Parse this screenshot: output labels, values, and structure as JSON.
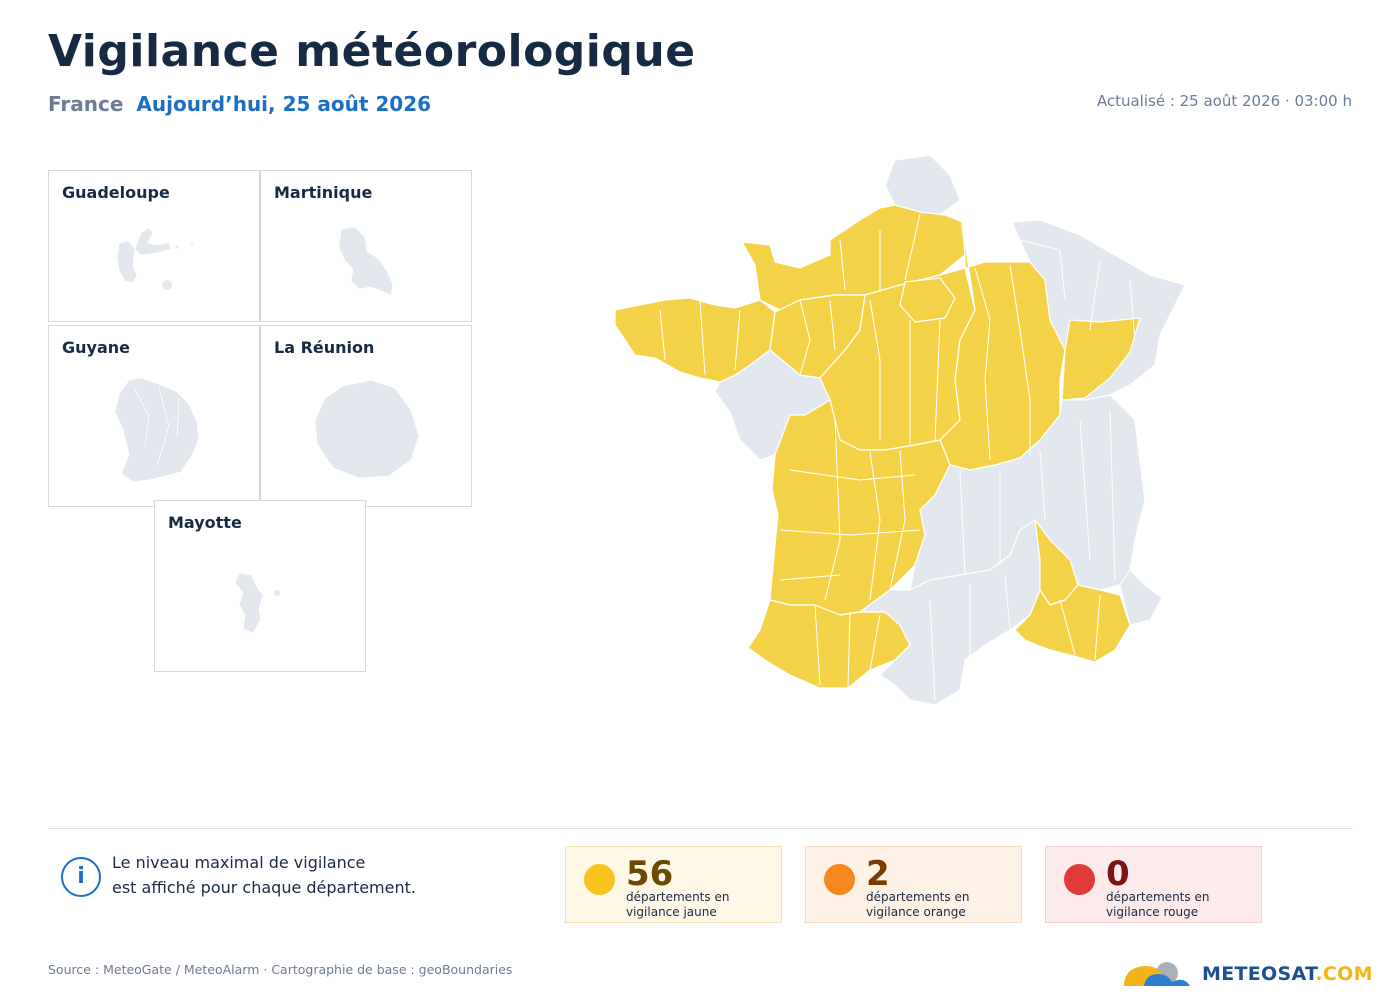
{
  "header": {
    "title": "Vigilance météorologique",
    "country": "France",
    "date": "Aujourd’hui, 25 août 2026",
    "updated": "Actualisé : 25 août 2026 · 03:00 h"
  },
  "overseas": [
    {
      "label": "Guadeloupe"
    },
    {
      "label": "Martinique"
    },
    {
      "label": "Guyane"
    },
    {
      "label": "La Réunion"
    },
    {
      "label": "Mayotte"
    }
  ],
  "map": {
    "colors": {
      "none": "#e3e7ee",
      "yellow": "#f4d247",
      "orange": "#f08e2e",
      "red": "#e03a3a"
    },
    "regions": [
      {
        "name": "nord",
        "level": "none"
      },
      {
        "name": "normandie",
        "level": "yellow"
      },
      {
        "name": "bretagne",
        "level": "yellow"
      },
      {
        "name": "pays-de-la-loire-est",
        "level": "yellow"
      },
      {
        "name": "pays-de-la-loire-ouest",
        "level": "none"
      },
      {
        "name": "centre",
        "level": "yellow"
      },
      {
        "name": "ile-de-france",
        "level": "yellow"
      },
      {
        "name": "champagne-bourgogne",
        "level": "yellow"
      },
      {
        "name": "grand-est",
        "level": "none"
      },
      {
        "name": "franche-comte",
        "level": "yellow"
      },
      {
        "name": "nouvelle-aquitaine",
        "level": "yellow"
      },
      {
        "name": "occitanie-ouest",
        "level": "yellow"
      },
      {
        "name": "massif-central-alpes",
        "level": "none"
      },
      {
        "name": "occitanie-est",
        "level": "none"
      },
      {
        "name": "rhone-vaucluse",
        "level": "yellow"
      },
      {
        "name": "provence-cote",
        "level": "yellow"
      },
      {
        "name": "alpes-maritimes",
        "level": "none"
      },
      {
        "name": "corse",
        "level": "orange"
      }
    ]
  },
  "info": {
    "line1": "Le niveau maximal de vigilance",
    "line2": "est affiché pour chaque département."
  },
  "summary": [
    {
      "count": "56",
      "line1": "départements en",
      "line2": "vigilance jaune",
      "dot": "#fbc31e",
      "bg": "#fff8e6",
      "border": "#f3e4b5",
      "num_color": "#6b4a00"
    },
    {
      "count": "2",
      "line1": "départements en",
      "line2": "vigilance orange",
      "dot": "#f7871b",
      "bg": "#fef1e6",
      "border": "#f5dcc4",
      "num_color": "#7a3a00"
    },
    {
      "count": "0",
      "line1": "départements en",
      "line2": "vigilance rouge",
      "dot": "#e03a3a",
      "bg": "#fdeaea",
      "border": "#f3cfcf",
      "num_color": "#7a1515"
    }
  ],
  "footer": {
    "source": "Source : MeteoGate / MeteoAlarm · Cartographie de base : geoBoundaries",
    "brand_main": "METEOSAT",
    "brand_tld": ".COM"
  }
}
